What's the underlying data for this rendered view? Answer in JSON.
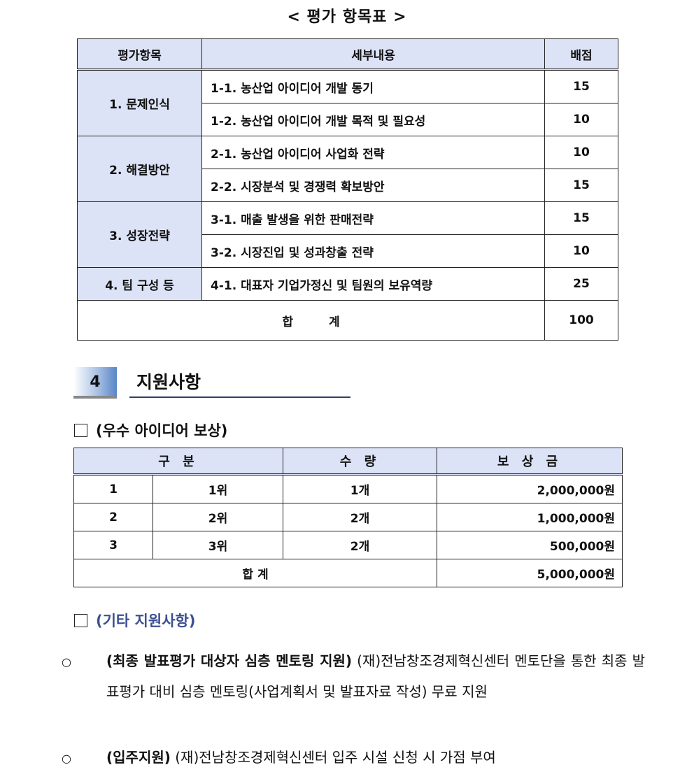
{
  "eval_table": {
    "title": "< 평가 항목표 >",
    "headers": [
      "평가항목",
      "세부내용",
      "배점"
    ],
    "groups": [
      {
        "category": "1. 문제인식",
        "items": [
          {
            "detail": "1-1. 농산업 아이디어 개발 동기",
            "score": "15"
          },
          {
            "detail": "1-2. 농산업 아이디어 개발 목적 및 필요성",
            "score": "10"
          }
        ]
      },
      {
        "category": "2. 해결방안",
        "items": [
          {
            "detail": "2-1. 농산업 아이디어 사업화 전략",
            "score": "10"
          },
          {
            "detail": "2-2. 시장분석 및 경쟁력 확보방안",
            "score": "15"
          }
        ]
      },
      {
        "category": "3. 성장전략",
        "items": [
          {
            "detail": "3-1. 매출 발생을 위한 판매전략",
            "score": "15"
          },
          {
            "detail": "3-2. 시장진입 및 성과창출 전략",
            "score": "10"
          }
        ]
      },
      {
        "category": "4. 팀 구성 등",
        "items": [
          {
            "detail": "4-1. 대표자 기업가정신 및 팀원의 보유역량",
            "score": "25"
          }
        ]
      }
    ],
    "total_label": "합　　　계",
    "total": "100"
  },
  "section": {
    "number": "4",
    "title": "지원사항"
  },
  "reward": {
    "heading": "(우수 아이디어 보상)",
    "headers": [
      "구 분",
      "수 량",
      "보 상 금"
    ],
    "rows": [
      [
        "1",
        "1위",
        "1개",
        "2,000,000원"
      ],
      [
        "2",
        "2위",
        "2개",
        "1,000,000원"
      ],
      [
        "3",
        "3위",
        "2개",
        "500,000원"
      ]
    ],
    "total_label": "합 계",
    "total": "5,000,000원"
  },
  "other": {
    "heading": "(기타 지원사항)",
    "heading_color": "#3b4f93",
    "bullets": [
      {
        "bold": "(최종 발표평가 대상자 심층 멘토링 지원)",
        "text": "(재)전남창조경제혁신센터 멘토단을 통한 최종 발표평가 대비 심층 멘토링(사업계획서 및 발표자료 작성) 무료 지원"
      },
      {
        "bold": "(입주지원)",
        "text": "(재)전남창조경제혁신센터 입주 시설 신청 시 가점 부여"
      }
    ]
  }
}
